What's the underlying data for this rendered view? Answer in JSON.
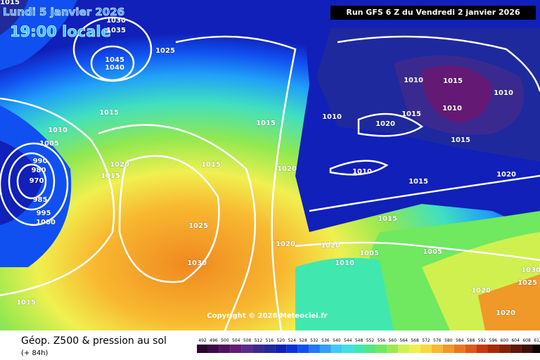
{
  "header": {
    "date": "Lundi 5 janvier 2026",
    "time": "19:00 locale",
    "run": "Run GFS 6 Z du Vendredi 2 janvier 2026",
    "copyright": "Copyright © 2026 Meteociel.fr"
  },
  "isobars": [
    1015,
    1030,
    1035,
    1025,
    1045,
    1040,
    1015,
    1010,
    1005,
    990,
    980,
    970,
    985,
    995,
    1000,
    1020,
    1015,
    1015,
    1025,
    1030,
    1015,
    1015,
    1020,
    1020,
    1020,
    1010,
    1005,
    1015,
    1005,
    1015,
    1010,
    1020,
    1010,
    1015,
    1010,
    1015,
    1010,
    1015,
    1010,
    1020,
    1030,
    1025,
    1020,
    1020
  ],
  "footer": {
    "title": "Géop. Z500 & pression au sol",
    "lead": "(+ 84h)"
  },
  "legend": {
    "ticks": [
      492,
      496,
      500,
      504,
      508,
      512,
      516,
      520,
      524,
      528,
      532,
      536,
      540,
      544,
      548,
      552,
      556,
      560,
      564,
      568,
      572,
      576,
      580,
      584,
      588,
      592,
      596,
      600,
      604,
      608,
      612
    ],
    "colors": [
      "#2a0830",
      "#3c0c48",
      "#50125e",
      "#641a74",
      "#5a2a8a",
      "#3a2a90",
      "#202a9a",
      "#1020b8",
      "#0a30d8",
      "#1050f0",
      "#2078f8",
      "#30a0f8",
      "#40c8f8",
      "#40e0e0",
      "#40e8b0",
      "#50e880",
      "#70e860",
      "#a0e850",
      "#d0f050",
      "#f0f050",
      "#f8d840",
      "#f8b830",
      "#f09828",
      "#e87820",
      "#e05818",
      "#c83810",
      "#a82808",
      "#882008",
      "#601808",
      "#401008",
      "#100000"
    ]
  }
}
